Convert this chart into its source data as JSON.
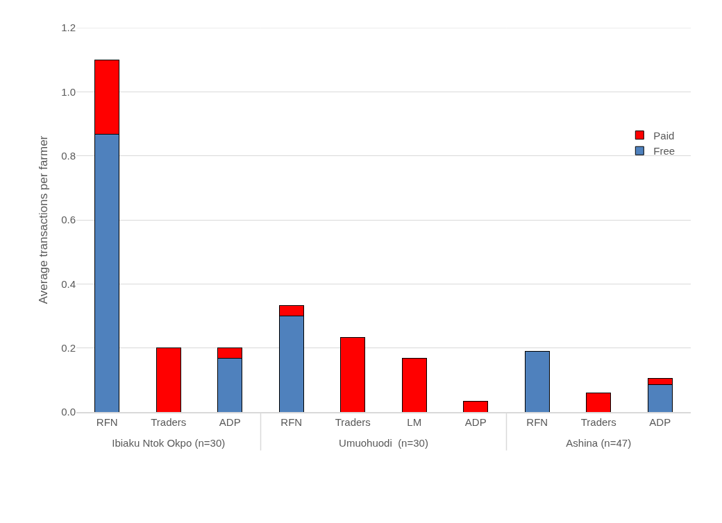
{
  "chart_data": [
    {
      "type": "bar",
      "stacked": true,
      "xlabel": "Ibiaku Ntok Okpo (n=30)",
      "ylabel": "Average transactions per farmer",
      "categories": [
        "RFN",
        "Traders",
        "ADP"
      ],
      "ylim": [
        0,
        1.2
      ],
      "yticks": [
        {
          "value": 0,
          "label": "0.0"
        },
        0.2,
        0.4,
        0.6,
        0.8,
        {
          "value": 1,
          "label": "1.0"
        },
        1.2
      ],
      "grid": "y",
      "series": [
        {
          "color": "#4f81bd",
          "values": [
            0.867,
            null,
            0.167
          ]
        },
        {
          "color": "#ff0000",
          "values": [
            0.233,
            0.2,
            0.033
          ]
        }
      ]
    },
    {
      "type": "bar",
      "stacked": true,
      "xlabel": "Umuohuodi  (n=30)",
      "categories": [
        "RFN",
        "Traders",
        "LM",
        "ADP"
      ],
      "ylim": [
        0,
        1.2
      ],
      "tick_labels": "x",
      "grid": "y",
      "series": [
        {
          "color": "#4f81bd",
          "values": [
            0.3,
            null,
            null,
            null
          ]
        },
        {
          "color": "#ff0000",
          "values": [
            0.033,
            0.233,
            0.167,
            0.033
          ]
        }
      ]
    },
    {
      "type": "bar",
      "stacked": true,
      "xlabel": "Ashina (n=47)",
      "categories": [
        "RFN",
        "Traders",
        "ADP"
      ],
      "ylim": [
        0,
        1.2
      ],
      "tick_labels": "x",
      "grid": "y",
      "legend": "right",
      "series": [
        {
          "name": "Free",
          "color": "#4f81bd",
          "values": [
            0.19,
            null,
            0.085
          ]
        },
        {
          "name": "Paid",
          "color": "#ff0000",
          "values": [
            null,
            0.06,
            0.02
          ]
        }
      ]
    }
  ]
}
